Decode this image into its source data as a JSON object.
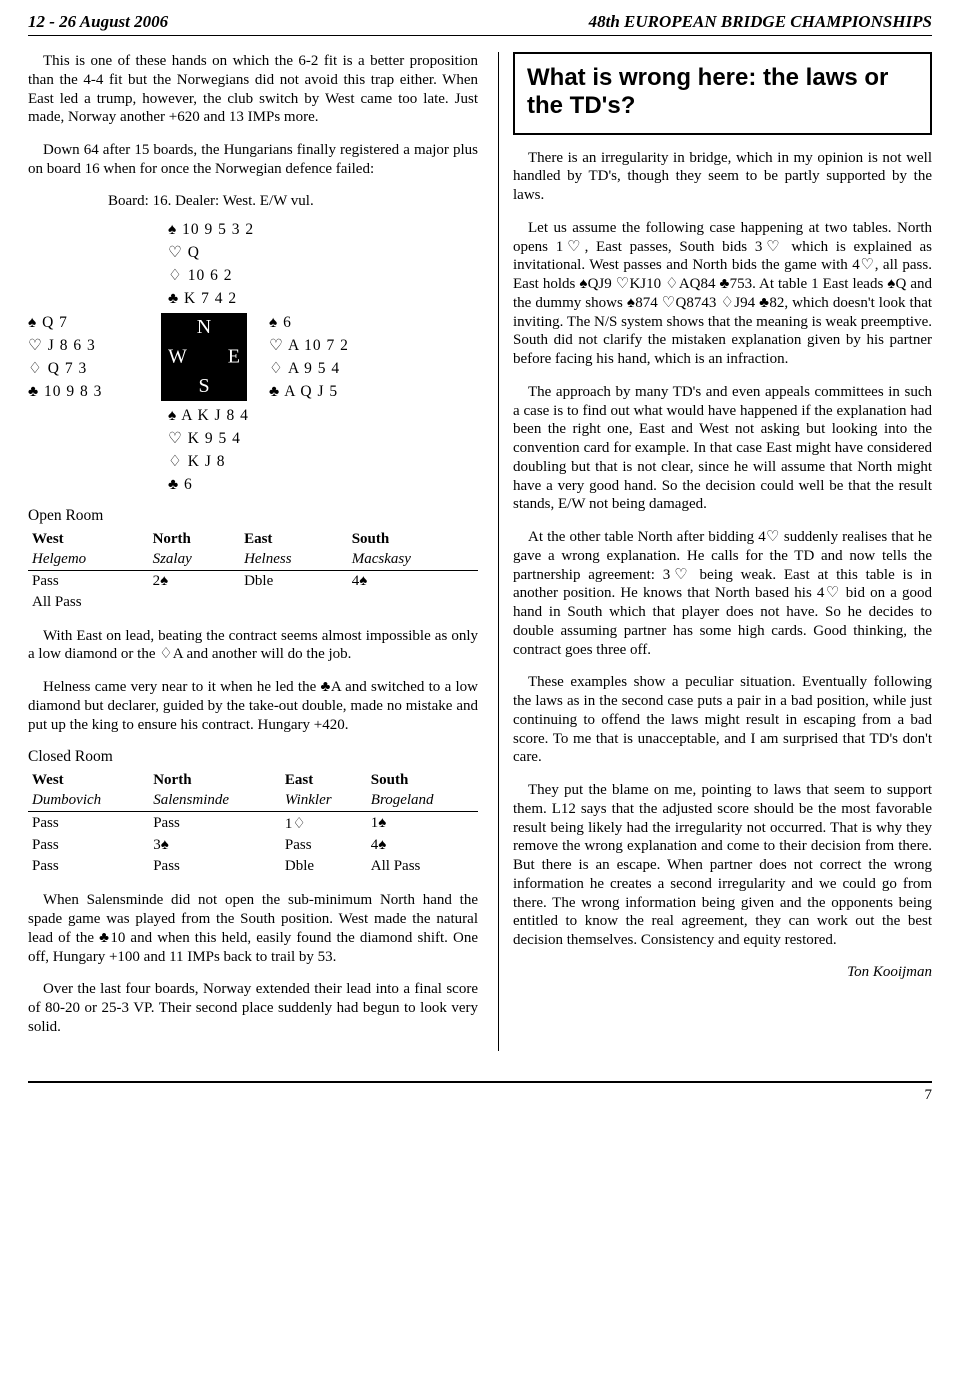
{
  "header": {
    "left": "12 - 26 August 2006",
    "right": "48th EUROPEAN BRIDGE CHAMPIONSHIPS"
  },
  "suits": {
    "s": "♠",
    "h": "♡",
    "d": "♢",
    "c": "♣"
  },
  "left": {
    "p1": "This is one of these hands on which the 6-2 fit is a better proposition than the 4-4 fit but the Norwegians did not avoid this trap either. When East led a trump, however, the club switch by West came too late. Just made, Norway another +620 and 13 IMPs more.",
    "p2": "Down 64 after 15 boards, the Hungarians finally registered a major plus on board 16 when for once the Norwegian defence failed:",
    "board_line": "Board: 16. Dealer: West. E/W vul.",
    "hands": {
      "north": {
        "s": "10 9 5 3 2",
        "h": "Q",
        "d": "10 6 2",
        "c": "K 7 4 2"
      },
      "west": {
        "s": "Q 7",
        "h": "J 8 6 3",
        "d": "Q 7 3",
        "c": "10 9 8 3"
      },
      "east": {
        "s": "6",
        "h": "A 10 7 2",
        "d": "A 9 5 4",
        "c": "A Q J 5"
      },
      "south": {
        "s": "A K J 8 4",
        "h": "K 9 5 4",
        "d": "K J 8",
        "c": "6"
      }
    },
    "open_room": {
      "title": "Open Room",
      "seats": [
        "West",
        "North",
        "East",
        "South"
      ],
      "players": [
        "Helgemo",
        "Szalay",
        "Helness",
        "Macskasy"
      ],
      "rows": [
        [
          "Pass",
          "2♠",
          "Dble",
          "4♠"
        ],
        [
          "All Pass",
          "",
          "",
          ""
        ]
      ]
    },
    "p3a": "With East on lead, beating the contract seems almost impossible as only a low diamond or the ",
    "p3b": "A and another will do the job.",
    "p4a": "Helness came very near to it when he led the ",
    "p4b": "A and switched to a low diamond but declarer, guided by the take-out double, made no mistake and put up the king to ensure his contract. Hungary +420.",
    "closed_room": {
      "title": "Closed Room",
      "seats": [
        "West",
        "North",
        "East",
        "South"
      ],
      "players": [
        "Dumbovich",
        "Salensminde",
        "Winkler",
        "Brogeland"
      ],
      "rows": [
        [
          "Pass",
          "Pass",
          "1♢",
          "1♠"
        ],
        [
          "Pass",
          "3♠",
          "Pass",
          "4♠"
        ],
        [
          "Pass",
          "Pass",
          "Dble",
          "All Pass"
        ]
      ]
    },
    "p5a": "When Salensminde did not open the sub-minimum North hand the spade game was played from the South position. West made the natural lead of the ",
    "p5b": "10 and when this held, easily found the diamond shift. One off, Hungary +100 and 11 IMPs back to trail by 53.",
    "p6": "Over the last four boards, Norway extended their lead into a final score of 80-20 or 25-3 VP. Their second place suddenly had begun to look very solid."
  },
  "right": {
    "title": "What is wrong here: the laws or the TD's?",
    "p1": "There is an irregularity in bridge, which in my opinion is not well handled by TD's, though they seem to be partly supported by the laws.",
    "p2a": "Let us assume the following case happening at two tables. North opens 1",
    "p2b": ", East passes, South bids 3",
    "p2c": " which is explained as invitational. West passes and North bids the game with 4",
    "p2d": ", all pass. East holds ",
    "p2e": "QJ9 ",
    "p2f": "KJ10 ",
    "p2g": "AQ84 ",
    "p2h": "753. At table 1 East leads ",
    "p2i": "Q and the dummy shows ",
    "p2j": "874 ",
    "p2k": "Q8743 ",
    "p2l": "J94 ",
    "p2m": "82, which doesn't look that inviting. The N/S system shows that the meaning is weak preemptive. South did not clarify the mistaken explanation given by his partner before facing his hand, which is an infraction.",
    "p3": "The approach by many TD's and even appeals committees in such a case is to find out what would have happened if the explanation had been the right one, East and West not asking but looking into the convention card for example. In that case East might have considered doubling but that is not clear, since he will assume that North might have a very good hand. So the decision could well be that the result stands, E/W not being damaged.",
    "p4a": "At the other table North after bidding 4",
    "p4b": " suddenly realises that he gave a wrong explanation. He calls for the TD and now tells the partnership agreement: 3",
    "p4c": " being weak. East at this table is in another position. He knows that North based his 4",
    "p4d": " bid on a good hand in South which that player does not have. So he decides to double assuming partner has some high cards. Good thinking, the contract goes three off.",
    "p5": "These examples show a peculiar situation. Eventually following the laws as in the second case puts a pair in a bad position, while just continuing to offend the laws might result in escaping from a bad score. To me that is unacceptable, and I am surprised that TD's don't care.",
    "p6": "They put the blame on me, pointing to laws that seem to support them. L12 says that the adjusted score should be the most favorable result being likely had the irregularity not occurred. That is why they remove the wrong explanation and come to their decision from there. But there is an escape. When partner does not correct the wrong information he creates a second irregularity and we could go from there. The wrong information being given and the opponents being entitled to know the real agreement, they can work out the best decision themselves. Consistency and equity restored.",
    "byline": "Ton Kooijman"
  },
  "page_number": "7"
}
